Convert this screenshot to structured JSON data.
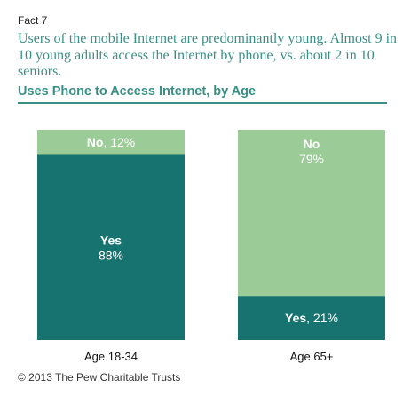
{
  "header": {
    "fact_label": "Fact 7",
    "headline": "Users of the mobile Internet are predominantly young. Almost 9 in 10 young adults access the Internet by phone, vs. about 2 in 10 seniors."
  },
  "colors": {
    "accent": "#3a8f85",
    "yes": "#17736f",
    "no": "#9bcb96",
    "text_light": "#ffffff"
  },
  "chart_data": {
    "type": "bar",
    "stacked": true,
    "normalized": true,
    "title": "Uses Phone to Access Internet, by Age",
    "categories": [
      "Age 18-34",
      "Age 65+"
    ],
    "ylim": [
      0,
      100
    ],
    "series": [
      {
        "name": "Yes",
        "values": [
          88,
          21
        ],
        "labels": [
          "88%",
          "21%"
        ]
      },
      {
        "name": "No",
        "values": [
          12,
          79
        ],
        "labels": [
          "12%",
          "79%"
        ]
      }
    ],
    "legend": "none",
    "grid": false
  },
  "footer": {
    "source": "© 2013 The Pew Charitable Trusts"
  }
}
